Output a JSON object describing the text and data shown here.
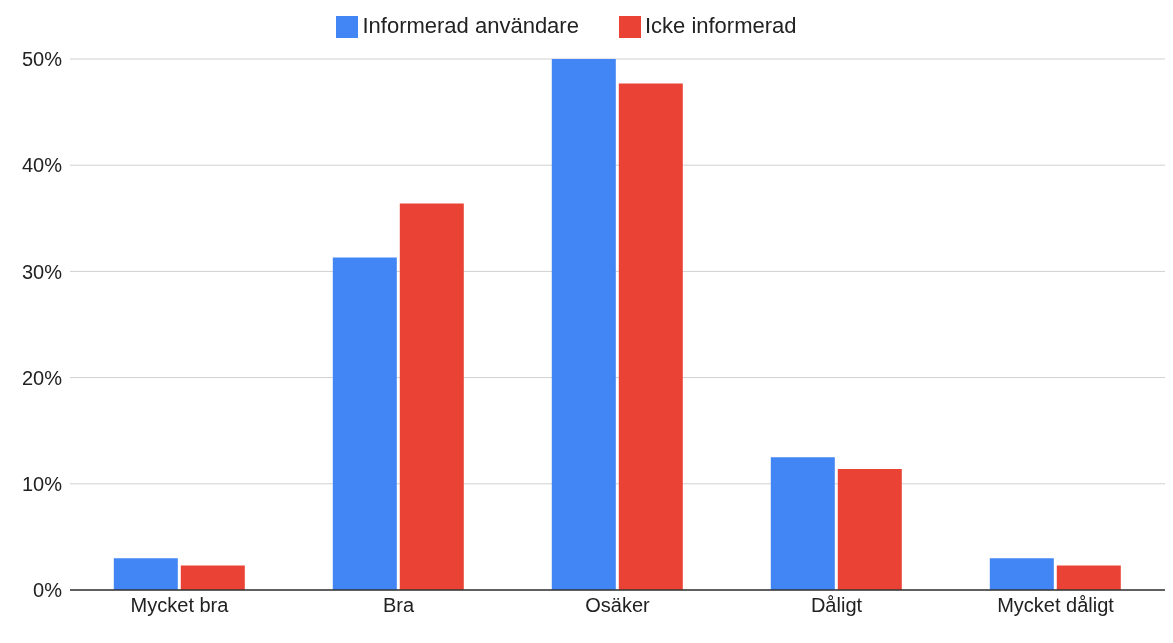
{
  "chart_data": {
    "type": "bar",
    "categories": [
      "Mycket bra",
      "Bra",
      "Osäker",
      "Dåligt",
      "Mycket dåligt"
    ],
    "series": [
      {
        "name": "Informerad användare",
        "color": "#4285f4",
        "values": [
          3.0,
          31.3,
          50,
          12.5,
          3.0
        ]
      },
      {
        "name": "Icke informerad",
        "color": "#ea4335",
        "values": [
          2.3,
          36.4,
          47.7,
          11.4,
          2.3
        ]
      }
    ],
    "ylim": [
      0,
      50
    ],
    "yticks": [
      {
        "value": 0,
        "label": "0%"
      },
      {
        "value": 10,
        "label": "10%"
      },
      {
        "value": 20,
        "label": "20%"
      },
      {
        "value": 30,
        "label": "30%"
      },
      {
        "value": 40,
        "label": "40%"
      },
      {
        "value": 50,
        "label": "50%"
      }
    ],
    "grid": "y",
    "legend": "top"
  }
}
